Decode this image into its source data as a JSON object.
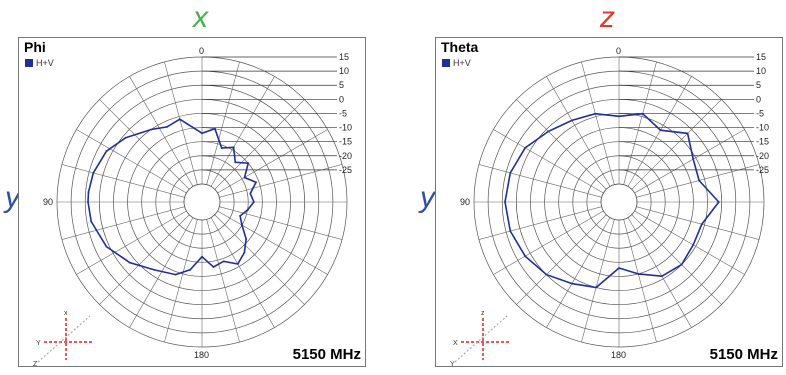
{
  "top_labels": [
    {
      "text": "x",
      "color": "#44b24a"
    },
    {
      "text": "z",
      "color": "#e03a2f"
    }
  ],
  "side_labels": [
    {
      "text": "y",
      "color": "#2f4fa6"
    },
    {
      "text": "y",
      "color": "#2f4fa6"
    }
  ],
  "chart_data": [
    {
      "type": "polar-line",
      "title": "Phi",
      "frequency_label": "5150 MHz",
      "legend": [
        "H+V"
      ],
      "series_color": "#1f2f9a",
      "radial_tick_labels": [
        "15",
        "10",
        "5",
        "0",
        "-5",
        "-10",
        "-15",
        "-20",
        "-25"
      ],
      "radial_range_dBi": [
        -30,
        15
      ],
      "angle_labels": {
        "top": "0",
        "left": "90",
        "bottom": "180"
      },
      "orientation_axes": {
        "up": "x",
        "left": "Y",
        "down": "Z"
      },
      "series": [
        {
          "name": "H+V",
          "angle_deg": [
            0,
            15,
            25,
            35,
            50,
            62,
            75,
            85,
            90,
            100,
            115,
            130,
            145,
            160,
            170,
            180,
            190,
            200,
            210,
            220,
            230,
            240,
            250,
            260,
            270,
            280,
            290,
            300,
            310,
            320,
            330,
            340,
            350
          ],
          "gain_dBi": [
            -12,
            -6,
            -7,
            -5,
            -1,
            2,
            3.5,
            4,
            4,
            3.5,
            1,
            -3,
            -7,
            -9,
            -12,
            -17,
            -13,
            -14,
            -11,
            -13,
            -16,
            -20,
            -22,
            -20,
            -18,
            -19,
            -16,
            -19,
            -15,
            -18,
            -14,
            -16,
            -10
          ]
        }
      ]
    },
    {
      "type": "polar-line",
      "title": "Theta",
      "frequency_label": "5150 MHz",
      "legend": [
        "H+V"
      ],
      "series_color": "#1f2f9a",
      "radial_tick_labels": [
        "15",
        "10",
        "5",
        "0",
        "-5",
        "-10",
        "-15",
        "-20",
        "-25"
      ],
      "radial_range_dBi": [
        -30,
        15
      ],
      "angle_labels": {
        "top": "0",
        "left": "90",
        "bottom": "180"
      },
      "orientation_axes": {
        "up": "z",
        "left": "X",
        "down": "Y"
      },
      "series": [
        {
          "name": "H+V",
          "angle_deg": [
            0,
            15,
            30,
            45,
            60,
            75,
            90,
            105,
            120,
            135,
            150,
            165,
            180,
            195,
            210,
            225,
            240,
            255,
            270,
            285,
            300,
            315,
            330,
            345
          ],
          "gain_dBi": [
            -6,
            -4,
            -3,
            -1,
            2,
            3.5,
            4,
            3.5,
            2,
            0,
            -3,
            -5,
            -13,
            -10,
            -6,
            -5,
            -6,
            -6,
            -1,
            -7,
            -6,
            -2,
            -7,
            -4
          ]
        }
      ]
    }
  ]
}
